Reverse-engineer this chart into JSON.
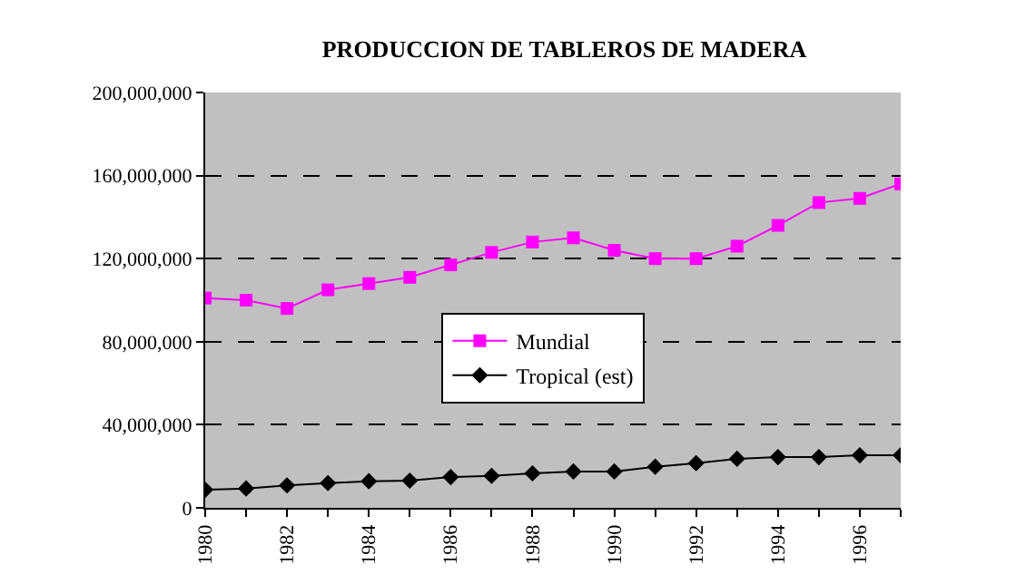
{
  "chart_data": {
    "type": "line",
    "title": "PRODUCCION DE TABLEROS DE MADERA",
    "x": [
      1980,
      1981,
      1982,
      1983,
      1984,
      1985,
      1986,
      1987,
      1988,
      1989,
      1990,
      1991,
      1992,
      1993,
      1994,
      1995,
      1996,
      1997
    ],
    "series": [
      {
        "name": "Mundial",
        "color": "#ff00ff",
        "marker": "square",
        "values": [
          101000000,
          100000000,
          96000000,
          105000000,
          108000000,
          111000000,
          117000000,
          123000000,
          128000000,
          130000000,
          124000000,
          120000000,
          120000000,
          126000000,
          136000000,
          147000000,
          149000000,
          156000000
        ]
      },
      {
        "name": "Tropical (est)",
        "color": "#000000",
        "marker": "diamond",
        "values": [
          8700000,
          9300000,
          10800000,
          11900000,
          12800000,
          13100000,
          14800000,
          15400000,
          16600000,
          17500000,
          17500000,
          19800000,
          21500000,
          23600000,
          24400000,
          24400000,
          25300000,
          25300000
        ]
      }
    ],
    "xlim": [
      1980,
      1997
    ],
    "xticks": [
      1980,
      {
        "value": 1981,
        "label": null
      },
      1982,
      {
        "value": 1983,
        "label": null
      },
      1984,
      {
        "value": 1985,
        "label": null
      },
      1986,
      {
        "value": 1987,
        "label": null
      },
      1988,
      {
        "value": 1989,
        "label": null
      },
      1990,
      {
        "value": 1991,
        "label": null
      },
      1992,
      {
        "value": 1993,
        "label": null
      },
      1994,
      {
        "value": 1995,
        "label": null
      },
      1996,
      {
        "value": 1997,
        "label": null
      }
    ],
    "ylim": [
      0,
      200000000
    ],
    "yticks": [
      {
        "value": 0,
        "label": "0"
      },
      {
        "value": 40000000,
        "label": "40,000,000"
      },
      {
        "value": 80000000,
        "label": "80,000,000"
      },
      {
        "value": 120000000,
        "label": "120,000,000"
      },
      {
        "value": 160000000,
        "label": "160,000,000"
      },
      {
        "value": 200000000,
        "label": "200,000,000"
      }
    ],
    "grid": "y",
    "legend": "center",
    "line_style": "solid"
  }
}
